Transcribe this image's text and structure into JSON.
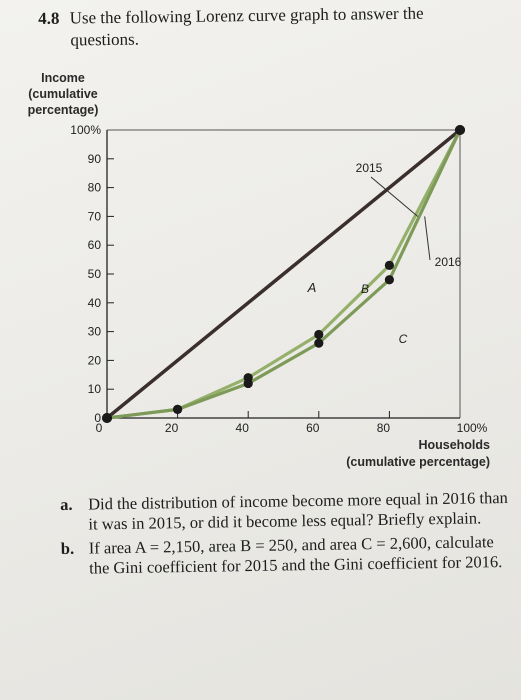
{
  "question": {
    "number": "4.8",
    "text_line1": "Use the following Lorenz curve graph to answer the",
    "text_line2": "questions."
  },
  "chart_data": {
    "type": "line",
    "ylabel_lines": [
      "Income",
      "(cumulative",
      "percentage)"
    ],
    "xlabel_lines": [
      "Households",
      "(cumulative percentage)"
    ],
    "y_ticks": [
      "0",
      "10",
      "20",
      "30",
      "40",
      "50",
      "60",
      "70",
      "80",
      "90",
      "100%"
    ],
    "x_ticks": [
      "0",
      "20",
      "40",
      "60",
      "80",
      "100%"
    ],
    "xlim": [
      0,
      100
    ],
    "ylim": [
      0,
      100
    ],
    "series": [
      {
        "name": "2015",
        "color": "#94b06a",
        "x": [
          0,
          20,
          40,
          60,
          80,
          100
        ],
        "y": [
          0,
          3,
          14,
          29,
          53,
          100
        ]
      },
      {
        "name": "2016",
        "color": "#7d9a58",
        "x": [
          0,
          20,
          40,
          60,
          80,
          100
        ],
        "y": [
          0,
          3,
          12,
          26,
          48,
          100
        ]
      }
    ],
    "equality_line": {
      "x": [
        0,
        100
      ],
      "y": [
        0,
        100
      ],
      "color": "#3b2f2e"
    },
    "area_labels": [
      "A",
      "B",
      "C"
    ],
    "grid": false
  },
  "parts": [
    {
      "letter": "a.",
      "text": "Did the distribution of income become more equal in 2016 than it was in 2015, or did it become less equal? Briefly explain."
    },
    {
      "letter": "b.",
      "text": "If area A = 2,150, area B = 250, and area C = 2,600, calculate the Gini coefficient for 2015 and the Gini coefficient for 2016."
    }
  ]
}
